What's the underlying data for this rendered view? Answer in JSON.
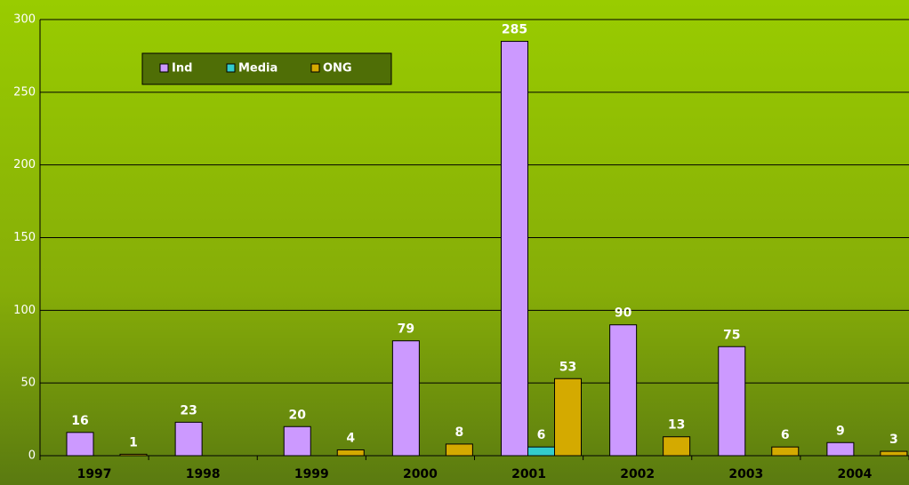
{
  "chart_data": {
    "type": "bar",
    "categories": [
      "1997",
      "1998",
      "1999",
      "2000",
      "2001",
      "2002",
      "2003",
      "2004"
    ],
    "series": [
      {
        "name": "Ind",
        "color": "#cc99ff",
        "values": [
          16,
          23,
          20,
          79,
          285,
          90,
          75,
          9
        ]
      },
      {
        "name": "Media",
        "color": "#33cccc",
        "values": [
          null,
          null,
          null,
          null,
          6,
          null,
          null,
          null
        ]
      },
      {
        "name": "ONG",
        "color": "#d4aa00",
        "values": [
          1,
          null,
          4,
          8,
          53,
          13,
          6,
          3
        ]
      }
    ],
    "ylim": [
      0,
      300
    ],
    "yticks": [
      0,
      50,
      100,
      150,
      200,
      250,
      300
    ],
    "grid": true,
    "legend": "top-left"
  }
}
